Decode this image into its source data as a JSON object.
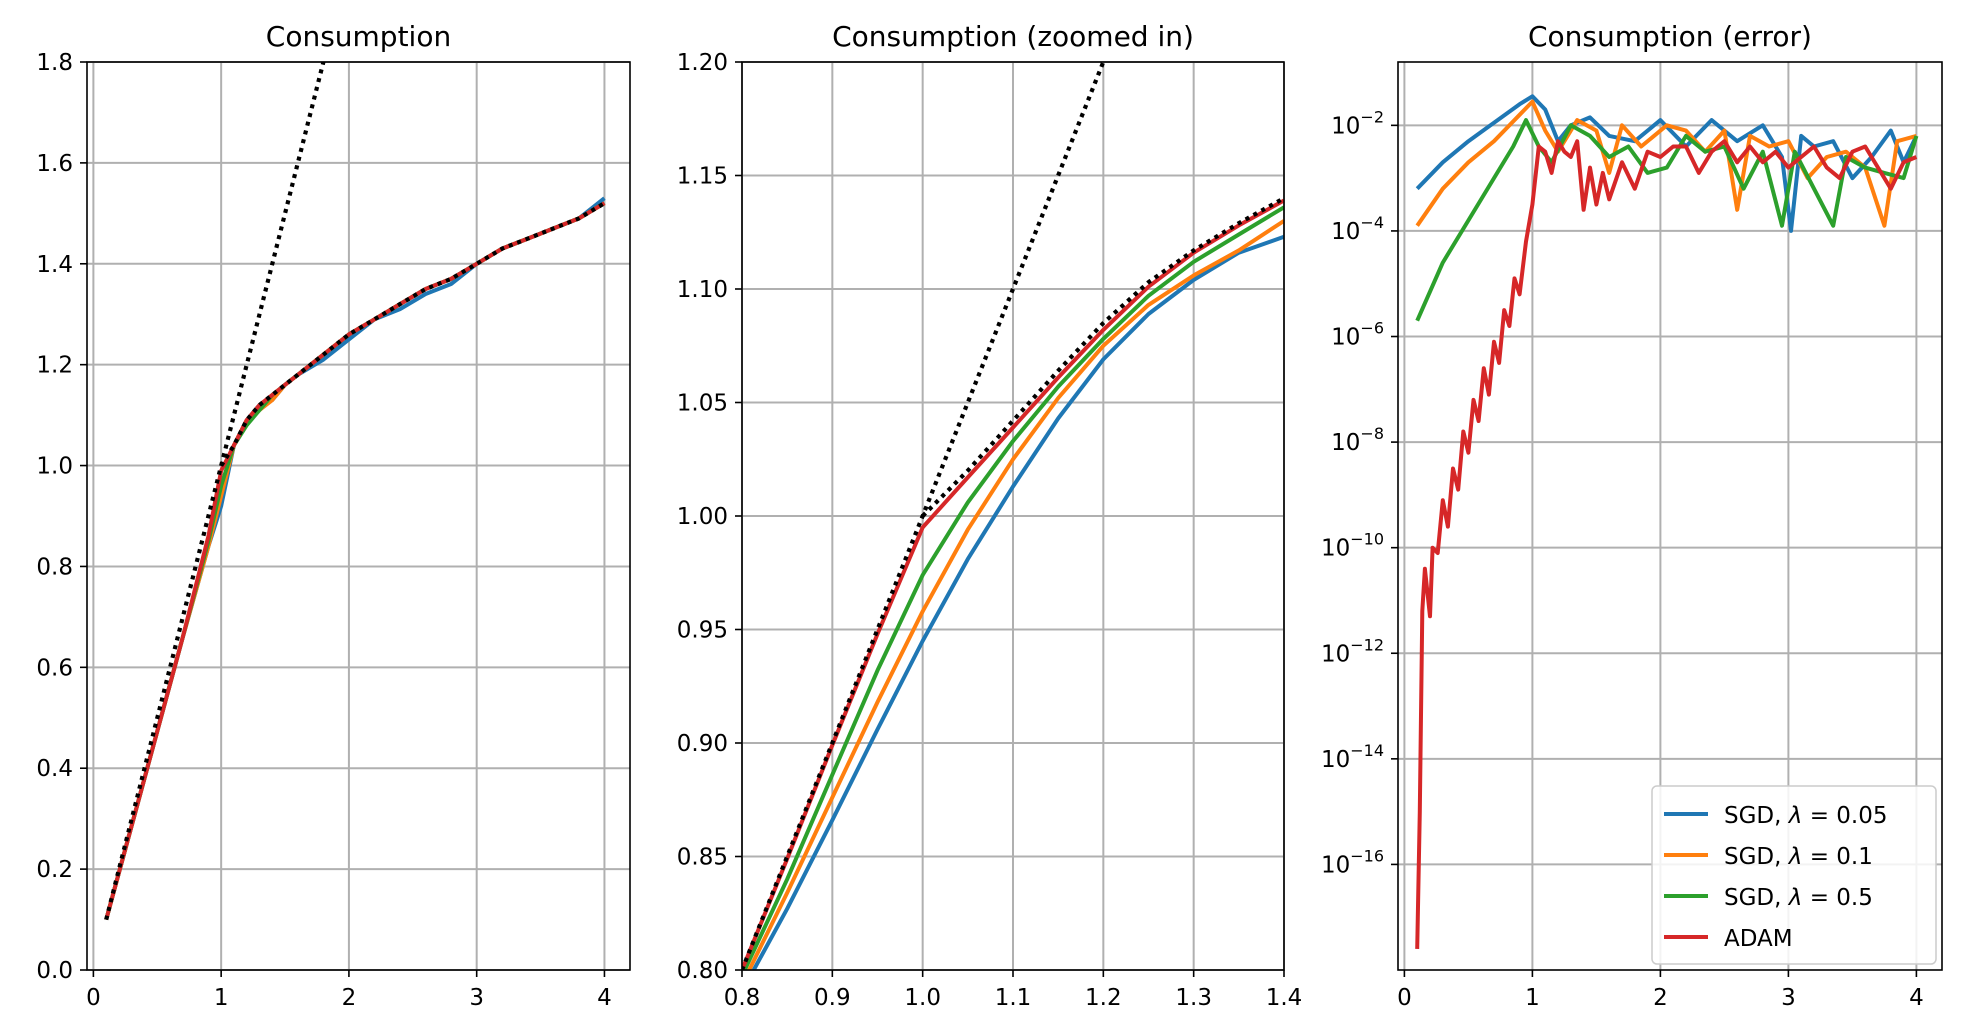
{
  "chart_data": [
    {
      "type": "line",
      "title": "Consumption",
      "xlim": [
        -0.05,
        4.2
      ],
      "ylim": [
        0.0,
        1.8
      ],
      "xticks": [
        "0",
        "1",
        "2",
        "3",
        "4"
      ],
      "yticks": [
        "0.0",
        "0.2",
        "0.4",
        "0.6",
        "0.8",
        "1.0",
        "1.2",
        "1.4",
        "1.6",
        "1.8"
      ],
      "grid": true,
      "series": [
        {
          "color": "#1f77b4",
          "x": [
            0.1,
            0.4,
            0.7,
            0.9,
            1.0,
            1.1,
            1.2,
            1.3,
            1.4,
            1.5,
            1.6,
            1.8,
            2.0,
            2.2,
            2.4,
            2.6,
            2.8,
            3.0,
            3.2,
            3.4,
            3.6,
            3.8,
            4.0
          ],
          "y": [
            0.1,
            0.38,
            0.66,
            0.84,
            0.92,
            1.04,
            1.09,
            1.12,
            1.13,
            1.16,
            1.18,
            1.21,
            1.25,
            1.29,
            1.31,
            1.34,
            1.36,
            1.4,
            1.43,
            1.45,
            1.47,
            1.49,
            1.53
          ]
        },
        {
          "color": "#ff7f0e",
          "x": [
            0.1,
            0.4,
            0.7,
            0.9,
            1.0,
            1.1,
            1.2,
            1.3,
            1.4,
            1.5,
            1.6,
            1.8,
            2.0,
            2.2,
            2.4,
            2.6,
            2.8,
            3.0,
            3.2,
            3.4,
            3.6,
            3.8,
            4.0
          ],
          "y": [
            0.1,
            0.38,
            0.66,
            0.84,
            0.94,
            1.04,
            1.09,
            1.11,
            1.13,
            1.16,
            1.18,
            1.22,
            1.26,
            1.29,
            1.32,
            1.35,
            1.37,
            1.4,
            1.43,
            1.45,
            1.47,
            1.49,
            1.52
          ]
        },
        {
          "color": "#2ca02c",
          "x": [
            0.1,
            0.4,
            0.7,
            0.9,
            1.0,
            1.1,
            1.2,
            1.3,
            1.4,
            1.5,
            1.6,
            1.8,
            2.0,
            2.2,
            2.4,
            2.6,
            2.8,
            3.0,
            3.2,
            3.4,
            3.6,
            3.8,
            4.0
          ],
          "y": [
            0.1,
            0.38,
            0.66,
            0.85,
            0.96,
            1.04,
            1.08,
            1.11,
            1.14,
            1.16,
            1.18,
            1.22,
            1.26,
            1.29,
            1.32,
            1.35,
            1.37,
            1.4,
            1.43,
            1.45,
            1.47,
            1.49,
            1.52
          ]
        },
        {
          "color": "#d62728",
          "x": [
            0.1,
            0.4,
            0.7,
            0.9,
            1.0,
            1.1,
            1.2,
            1.3,
            1.4,
            1.5,
            1.6,
            1.8,
            2.0,
            2.2,
            2.4,
            2.6,
            2.8,
            3.0,
            3.2,
            3.4,
            3.6,
            3.8,
            4.0
          ],
          "y": [
            0.1,
            0.38,
            0.66,
            0.86,
            0.99,
            1.04,
            1.09,
            1.12,
            1.14,
            1.16,
            1.18,
            1.22,
            1.26,
            1.29,
            1.32,
            1.35,
            1.37,
            1.4,
            1.43,
            1.45,
            1.47,
            1.49,
            1.52
          ]
        },
        {
          "color": "#000000",
          "dashed": true,
          "x": [
            0.1,
            1.8
          ],
          "y": [
            0.1,
            1.8
          ]
        },
        {
          "color": "#000000",
          "dashed": true,
          "x": [
            1.0,
            1.1,
            1.2,
            1.3,
            1.4,
            1.5,
            1.6,
            1.8,
            2.0,
            2.2,
            2.4,
            2.6,
            2.8,
            3.0,
            3.2,
            3.4,
            3.6,
            3.8,
            4.0
          ],
          "y": [
            1.0,
            1.04,
            1.09,
            1.12,
            1.14,
            1.16,
            1.18,
            1.22,
            1.26,
            1.29,
            1.32,
            1.35,
            1.37,
            1.4,
            1.43,
            1.45,
            1.47,
            1.49,
            1.52
          ]
        }
      ]
    },
    {
      "type": "line",
      "title": "Consumption (zoomed in)",
      "xlim": [
        0.8,
        1.4
      ],
      "ylim": [
        0.8,
        1.2
      ],
      "xticks": [
        "0.8",
        "0.9",
        "1.0",
        "1.1",
        "1.2",
        "1.3",
        "1.4"
      ],
      "yticks": [
        "0.80",
        "0.85",
        "0.90",
        "0.95",
        "1.00",
        "1.05",
        "1.10",
        "1.15",
        "1.20"
      ],
      "grid": true,
      "series": [
        {
          "color": "#1f77b4",
          "x": [
            0.813,
            0.85,
            0.9,
            0.95,
            1.0,
            1.05,
            1.1,
            1.15,
            1.2,
            1.25,
            1.3,
            1.35,
            1.4
          ],
          "y": [
            0.8,
            0.827,
            0.866,
            0.906,
            0.945,
            0.981,
            1.013,
            1.043,
            1.069,
            1.089,
            1.104,
            1.116,
            1.123
          ]
        },
        {
          "color": "#ff7f0e",
          "x": [
            0.808,
            0.85,
            0.9,
            0.95,
            1.0,
            1.05,
            1.1,
            1.15,
            1.2,
            1.25,
            1.3,
            1.35,
            1.4
          ],
          "y": [
            0.8,
            0.834,
            0.876,
            0.918,
            0.958,
            0.994,
            1.025,
            1.052,
            1.075,
            1.093,
            1.106,
            1.117,
            1.13
          ]
        },
        {
          "color": "#2ca02c",
          "x": [
            0.803,
            0.85,
            0.9,
            0.95,
            1.0,
            1.05,
            1.1,
            1.15,
            1.2,
            1.25,
            1.3,
            1.35,
            1.4
          ],
          "y": [
            0.8,
            0.84,
            0.886,
            0.932,
            0.974,
            1.006,
            1.033,
            1.057,
            1.078,
            1.097,
            1.112,
            1.124,
            1.136
          ]
        },
        {
          "color": "#d62728",
          "x": [
            0.8,
            0.85,
            0.9,
            0.95,
            1.0,
            1.05,
            1.1,
            1.15,
            1.2,
            1.25,
            1.3,
            1.35,
            1.4
          ],
          "y": [
            0.8,
            0.849,
            0.899,
            0.948,
            0.995,
            1.017,
            1.039,
            1.061,
            1.082,
            1.101,
            1.116,
            1.128,
            1.139
          ]
        },
        {
          "color": "#000000",
          "dashed": true,
          "x": [
            0.8,
            1.2
          ],
          "y": [
            0.8,
            1.2
          ]
        },
        {
          "color": "#000000",
          "dashed": true,
          "x": [
            1.0,
            1.05,
            1.1,
            1.15,
            1.2,
            1.25,
            1.3,
            1.35,
            1.4
          ],
          "y": [
            1.0,
            1.02,
            1.042,
            1.064,
            1.085,
            1.103,
            1.117,
            1.129,
            1.14
          ]
        }
      ]
    },
    {
      "type": "line",
      "title": "Consumption (error)",
      "yscale": "log",
      "xlim": [
        -0.05,
        4.2
      ],
      "ylim_exp": [
        -18,
        -0.8
      ],
      "xticks": [
        "0",
        "1",
        "2",
        "3",
        "4"
      ],
      "yticks_exp": [
        "-16",
        "-14",
        "-12",
        "-10",
        "-8",
        "-6",
        "-4",
        "-2"
      ],
      "tick_base": "10",
      "tick_minus": "−",
      "grid": true,
      "legend_position": "lower right",
      "legend": [
        {
          "label": "SGD, ",
          "symbol": "λ",
          "value": " = 0.05",
          "color": "#1f77b4"
        },
        {
          "label": "SGD, ",
          "symbol": "λ",
          "value": " = 0.1",
          "color": "#ff7f0e"
        },
        {
          "label": "SGD, ",
          "symbol": "λ",
          "value": " = 0.5",
          "color": "#2ca02c"
        },
        {
          "label": "ADAM",
          "symbol": "",
          "value": "",
          "color": "#d62728"
        }
      ],
      "series": [
        {
          "color": "#1f77b4",
          "x": [
            0.1,
            0.3,
            0.5,
            0.7,
            0.9,
            1.0,
            1.1,
            1.2,
            1.3,
            1.45,
            1.6,
            1.8,
            2.0,
            2.2,
            2.4,
            2.6,
            2.8,
            2.95,
            3.02,
            3.1,
            3.2,
            3.35,
            3.5,
            3.65,
            3.8,
            3.9,
            4.0
          ],
          "y": [
            -3.2,
            -2.7,
            -2.3,
            -1.95,
            -1.6,
            -1.45,
            -1.7,
            -2.3,
            -2.0,
            -1.85,
            -2.2,
            -2.3,
            -1.9,
            -2.4,
            -1.9,
            -2.3,
            -2.0,
            -2.6,
            -4.0,
            -2.2,
            -2.4,
            -2.3,
            -3.0,
            -2.6,
            -2.1,
            -2.7,
            -2.2
          ]
        },
        {
          "color": "#ff7f0e",
          "x": [
            0.1,
            0.3,
            0.5,
            0.7,
            0.9,
            1.0,
            1.1,
            1.2,
            1.35,
            1.5,
            1.6,
            1.7,
            1.85,
            1.95,
            2.05,
            2.2,
            2.35,
            2.5,
            2.6,
            2.7,
            2.85,
            3.0,
            3.15,
            3.3,
            3.45,
            3.6,
            3.75,
            3.85,
            4.0
          ],
          "y": [
            -3.9,
            -3.2,
            -2.7,
            -2.3,
            -1.8,
            -1.55,
            -2.1,
            -2.5,
            -1.9,
            -2.1,
            -2.9,
            -2.0,
            -2.4,
            -2.2,
            -2.0,
            -2.1,
            -2.5,
            -2.1,
            -3.6,
            -2.2,
            -2.4,
            -2.3,
            -3.0,
            -2.6,
            -2.5,
            -2.8,
            -3.9,
            -2.3,
            -2.2
          ]
        },
        {
          "color": "#2ca02c",
          "x": [
            0.1,
            0.3,
            0.5,
            0.7,
            0.85,
            0.95,
            1.05,
            1.15,
            1.3,
            1.45,
            1.6,
            1.75,
            1.9,
            2.05,
            2.2,
            2.35,
            2.5,
            2.65,
            2.8,
            2.95,
            3.05,
            3.2,
            3.35,
            3.45,
            3.6,
            3.75,
            3.9,
            4.0
          ],
          "y": [
            -5.7,
            -4.6,
            -3.8,
            -3.0,
            -2.4,
            -1.9,
            -2.4,
            -2.7,
            -2.0,
            -2.2,
            -2.6,
            -2.4,
            -2.9,
            -2.8,
            -2.2,
            -2.5,
            -2.4,
            -3.2,
            -2.5,
            -3.9,
            -2.5,
            -3.2,
            -3.9,
            -2.6,
            -2.8,
            -2.9,
            -3.0,
            -2.2
          ]
        },
        {
          "color": "#d62728",
          "x": [
            0.1,
            0.12,
            0.14,
            0.16,
            0.2,
            0.22,
            0.26,
            0.3,
            0.34,
            0.38,
            0.42,
            0.46,
            0.5,
            0.54,
            0.58,
            0.62,
            0.66,
            0.7,
            0.74,
            0.78,
            0.82,
            0.86,
            0.9,
            0.95,
            1.0,
            1.05,
            1.1,
            1.15,
            1.2,
            1.25,
            1.3,
            1.35,
            1.4,
            1.45,
            1.5,
            1.55,
            1.6,
            1.7,
            1.8,
            1.9,
            2.0,
            2.1,
            2.2,
            2.3,
            2.4,
            2.5,
            2.6,
            2.7,
            2.8,
            2.9,
            3.0,
            3.1,
            3.2,
            3.3,
            3.4,
            3.5,
            3.6,
            3.7,
            3.8,
            3.9,
            4.0
          ],
          "y": [
            -17.6,
            -15.0,
            -11.2,
            -10.4,
            -11.3,
            -10.0,
            -10.1,
            -9.1,
            -9.6,
            -8.5,
            -8.9,
            -7.8,
            -8.2,
            -7.2,
            -7.6,
            -6.6,
            -7.1,
            -6.1,
            -6.5,
            -5.5,
            -5.8,
            -4.9,
            -5.2,
            -4.2,
            -3.5,
            -2.4,
            -2.5,
            -2.9,
            -2.3,
            -2.5,
            -2.6,
            -2.3,
            -3.6,
            -2.8,
            -3.5,
            -2.9,
            -3.4,
            -2.7,
            -3.2,
            -2.5,
            -2.6,
            -2.4,
            -2.4,
            -2.9,
            -2.5,
            -2.3,
            -2.7,
            -2.4,
            -2.7,
            -2.5,
            -2.8,
            -2.6,
            -2.4,
            -2.8,
            -3.0,
            -2.5,
            -2.4,
            -2.8,
            -3.2,
            -2.7,
            -2.6
          ]
        }
      ]
    }
  ]
}
